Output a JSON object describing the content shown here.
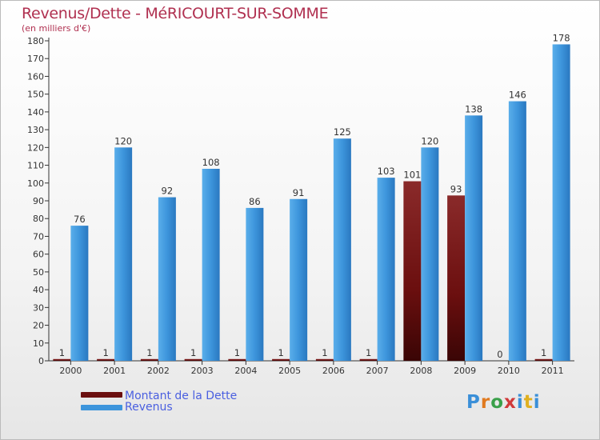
{
  "title": "Revenus/Dette - MéRICOURT-SUR-SOMME",
  "subtitle": "(en milliers d'€)",
  "chart_data": {
    "type": "bar",
    "title": "Revenus/Dette - MéRICOURT-SUR-SOMME",
    "ylabel": "(en milliers d'€)",
    "xlabel": "",
    "ylim": [
      0,
      180
    ],
    "y_ticks": [
      0,
      10,
      20,
      30,
      40,
      50,
      60,
      70,
      80,
      90,
      100,
      110,
      120,
      130,
      140,
      150,
      160,
      170,
      180
    ],
    "grid": false,
    "categories": [
      "2000",
      "2001",
      "2002",
      "2003",
      "2004",
      "2005",
      "2006",
      "2007",
      "2008",
      "2009",
      "2010",
      "2011"
    ],
    "series": [
      {
        "name": "Montant de la Dette",
        "color": "#7a1010",
        "values": [
          1,
          1,
          1,
          1,
          1,
          1,
          1,
          1,
          101,
          93,
          0,
          1
        ]
      },
      {
        "name": "Revenus",
        "color": "#3d95dc",
        "values": [
          76,
          120,
          92,
          108,
          86,
          91,
          125,
          103,
          120,
          138,
          146,
          178
        ]
      }
    ],
    "legend_position": "bottom-left"
  },
  "legend": [
    {
      "label": "Montant de la Dette",
      "color": "#6b0f0f"
    },
    {
      "label": "Revenus",
      "color": "#3d95dc"
    }
  ],
  "logo": {
    "letters": [
      "P",
      "r",
      "o",
      "x",
      "i",
      "t",
      "i"
    ],
    "colors": [
      "#3a8fd8",
      "#e07a20",
      "#3aa04a",
      "#d03a3a",
      "#3a8fd8",
      "#e0b020",
      "#3a8fd8"
    ]
  }
}
